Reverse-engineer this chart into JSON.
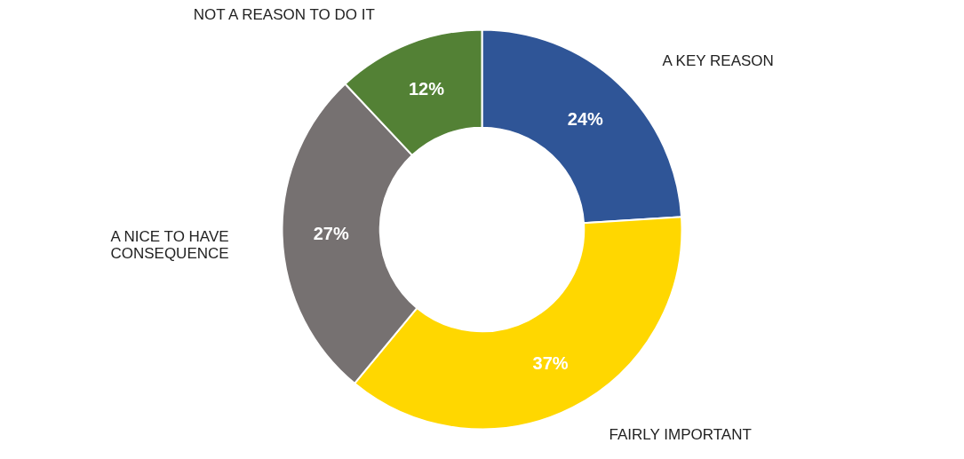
{
  "chart_data": {
    "type": "donut",
    "categories": [
      "A KEY REASON",
      "FAIRLY IMPORTANT",
      "A NICE TO HAVE\nCONSEQUENCE",
      "NOT A REASON TO DO IT"
    ],
    "values": [
      24,
      37,
      27,
      12
    ],
    "colors": [
      "#2f5597",
      "#ffd700",
      "#767171",
      "#538135"
    ],
    "value_labels": [
      "24%",
      "37%",
      "27%",
      "12%"
    ],
    "legend": false
  }
}
